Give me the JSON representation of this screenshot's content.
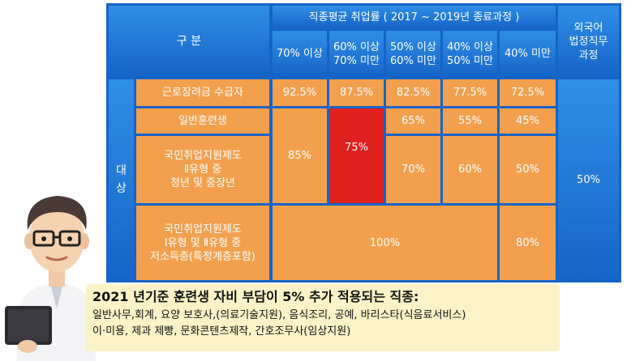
{
  "table": {
    "header": {
      "category": "구    분",
      "employment_rate_title": "직종평균 취업률 ( 2017 ~ 2019년 종료과정 )",
      "columns": [
        "70% 이상",
        "60% 이상\n70% 미만",
        "50% 이상\n60% 미만",
        "40% 이상\n50% 미만",
        "40% 미만"
      ],
      "foreign_job": "외국어\n법정직무\n과정"
    },
    "target_label": "대\n상",
    "rows": [
      {
        "label": "근로장려금 수급자",
        "values": [
          "92.5%",
          "87.5%",
          "82.5%",
          "77.5%",
          "72.5%"
        ]
      },
      {
        "label": "일반훈련생",
        "values": [
          "65%",
          "55%",
          "45%"
        ]
      },
      {
        "label": "국민취업지원제도\nⅡ유형 중\n청년 및 중장년",
        "values": [
          "70%",
          "60%",
          "50%"
        ]
      },
      {
        "label": "국민취업지원제도\nⅠ유형 및 Ⅱ유형 중\n저소득층(특정계층포함)",
        "values": [
          "100%",
          "80%"
        ]
      }
    ],
    "merged_85": "85%",
    "merged_75": "75%",
    "foreign_value": "50%",
    "colors": {
      "header_blue": "#1f78d8",
      "cell_orange": "#f2a04e",
      "highlight_red": "#e01f1f"
    }
  },
  "caption": {
    "title": "2021 년기준 훈련생 자비 부담이 5% 추가 적용되는 직종:",
    "line1": "일반사무,회계, 요양 보호사,(의료기술지원), 음식조리, 공예, 바리스타(식음료서비스)",
    "line2": "이·미용, 제과 제빵, 문화콘텐츠제작, 간호조무사(임상지원)"
  }
}
